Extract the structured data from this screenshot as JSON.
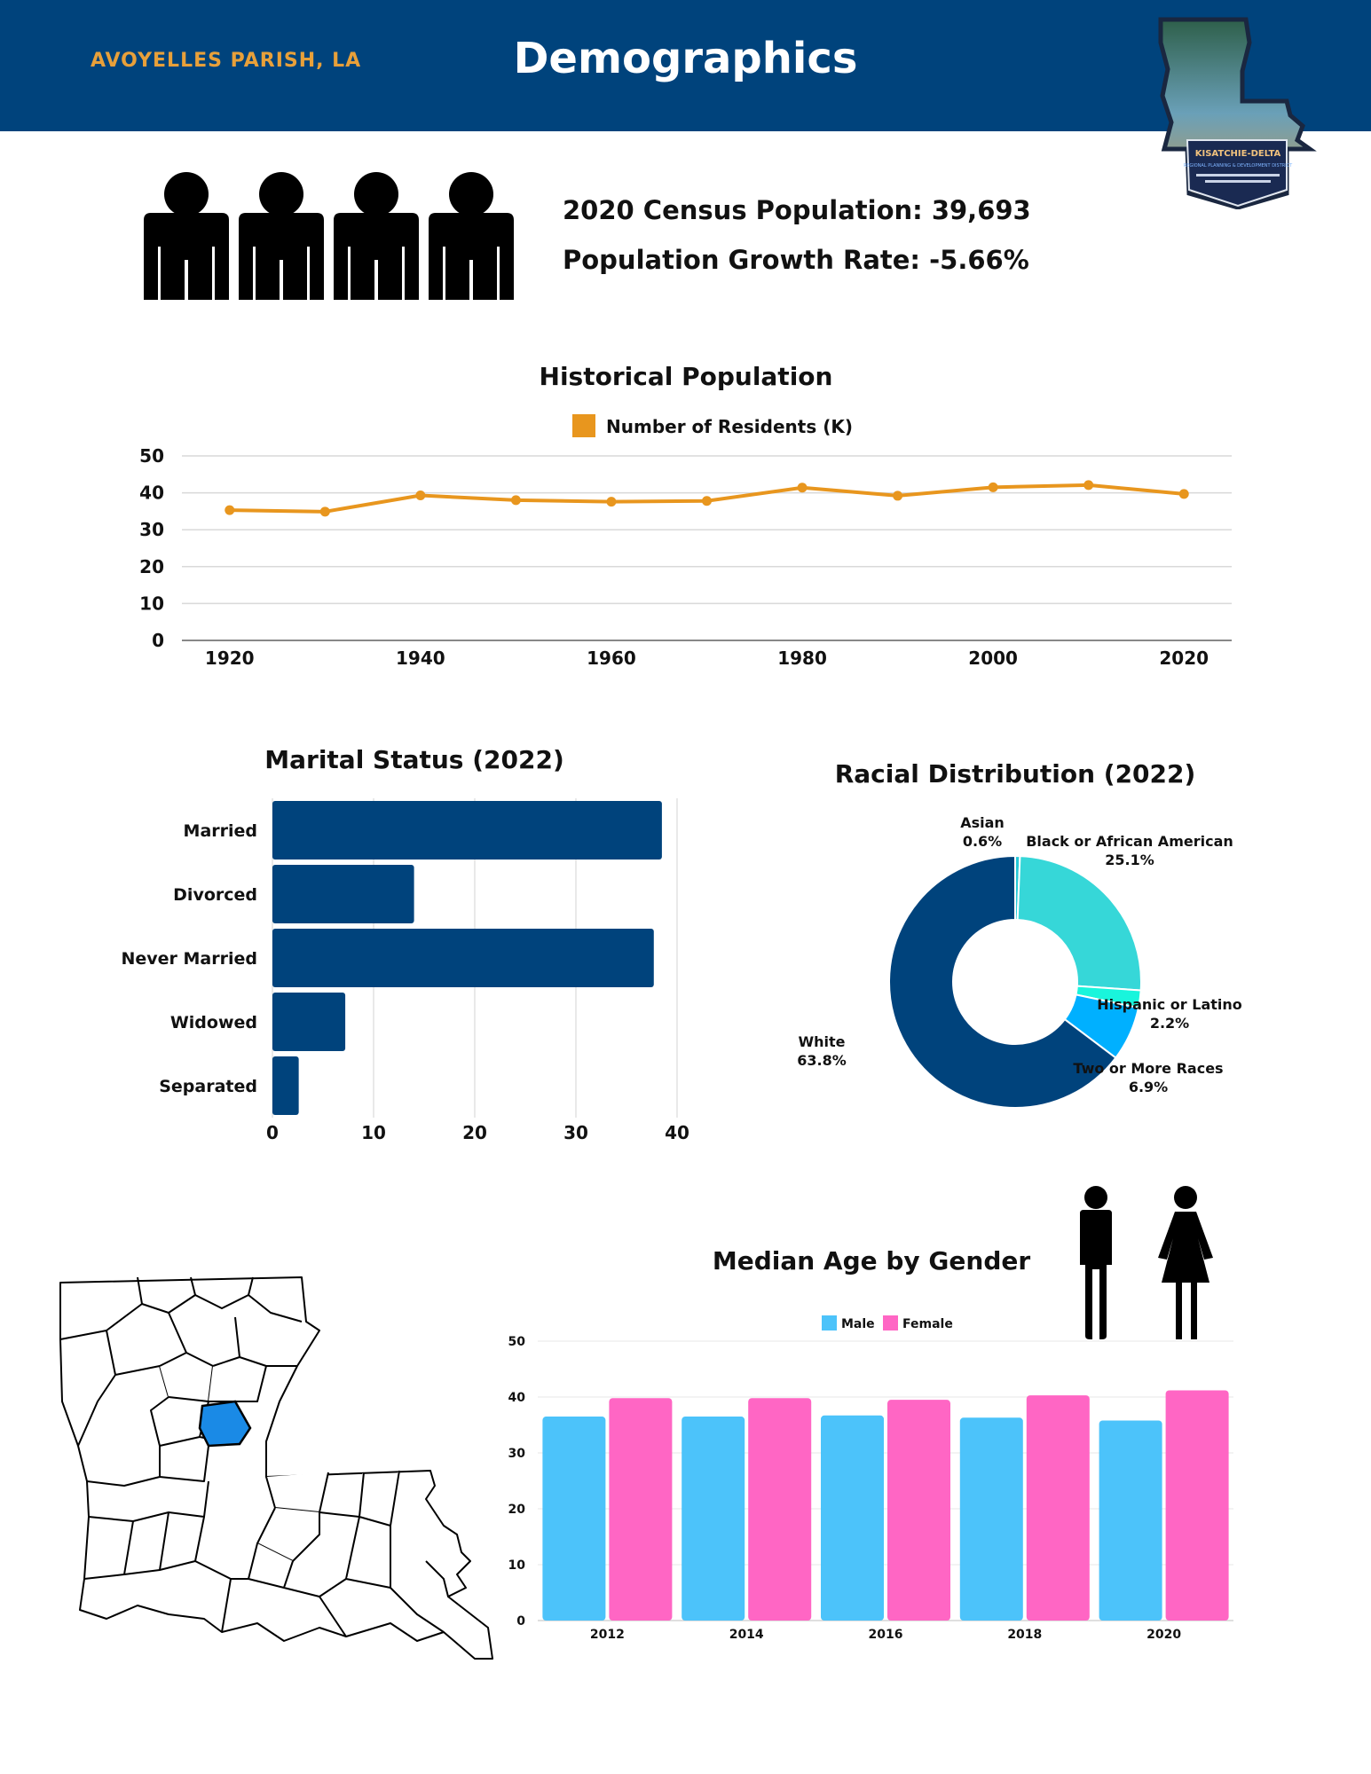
{
  "header": {
    "parish": "AVOYELLES PARISH, LA",
    "title": "Demographics",
    "logo_text": "KISATCHIE-DELTA",
    "logo_sub": "REGIONAL PLANNING & DEVELOPMENT DISTRICT"
  },
  "stats": {
    "census": "2020 Census Population: 39,693",
    "growth": "Population Growth Rate: -5.66%"
  },
  "colors": {
    "navy": "#00437c",
    "orange": "#e8961e",
    "teal": "#36d7d8",
    "aqua": "#19f5dc",
    "blue": "#00b0ff",
    "male": "#4cc3fa",
    "female": "#ff66c4",
    "map_highlight": "#1a8ae6"
  },
  "chart_data": [
    {
      "type": "line",
      "title": "Historical Population",
      "legend": [
        "Number of Residents (K)"
      ],
      "x": [
        1920,
        1930,
        1940,
        1950,
        1960,
        1970,
        1980,
        1990,
        2000,
        2010,
        2020
      ],
      "series": [
        {
          "name": "Number of Residents (K)",
          "values": [
            35.3,
            34.9,
            39.3,
            38.0,
            37.6,
            37.8,
            41.4,
            39.2,
            41.5,
            42.1,
            39.7
          ]
        }
      ],
      "xticks": [
        1920,
        1940,
        1960,
        1980,
        2000,
        2020
      ],
      "yticks": [
        0,
        10,
        20,
        30,
        40,
        50
      ],
      "ylim": [
        0,
        50
      ],
      "grid": true,
      "legend_position": "top"
    },
    {
      "type": "bar",
      "orientation": "horizontal",
      "title": "Marital Status (2022)",
      "categories": [
        "Married",
        "Divorced",
        "Never Married",
        "Widowed",
        "Separated"
      ],
      "values": [
        38.5,
        14.0,
        37.7,
        7.2,
        2.6
      ],
      "xticks": [
        0,
        10,
        20,
        30,
        40
      ],
      "xlim": [
        0,
        40
      ],
      "grid": true
    },
    {
      "type": "pie",
      "title": "Racial Distribution (2022)",
      "labels": [
        "Asian",
        "Black or African American",
        "Hispanic or Latino",
        "Two or More Races",
        "White"
      ],
      "values": [
        0.6,
        25.1,
        2.2,
        6.9,
        63.8
      ],
      "value_labels": [
        "0.6%",
        "25.1%",
        "2.2%",
        "6.9%",
        "63.8%"
      ]
    },
    {
      "type": "bar",
      "title": "Median Age by Gender",
      "categories": [
        "2012",
        "2014",
        "2016",
        "2018",
        "2020"
      ],
      "series": [
        {
          "name": "Male",
          "values": [
            36.5,
            36.5,
            36.7,
            36.3,
            35.8
          ]
        },
        {
          "name": "Female",
          "values": [
            39.8,
            39.8,
            39.5,
            40.3,
            41.2
          ]
        }
      ],
      "yticks": [
        0,
        10,
        20,
        30,
        40,
        50
      ],
      "ylim": [
        0,
        50
      ],
      "grid": true,
      "legend_position": "top"
    }
  ]
}
